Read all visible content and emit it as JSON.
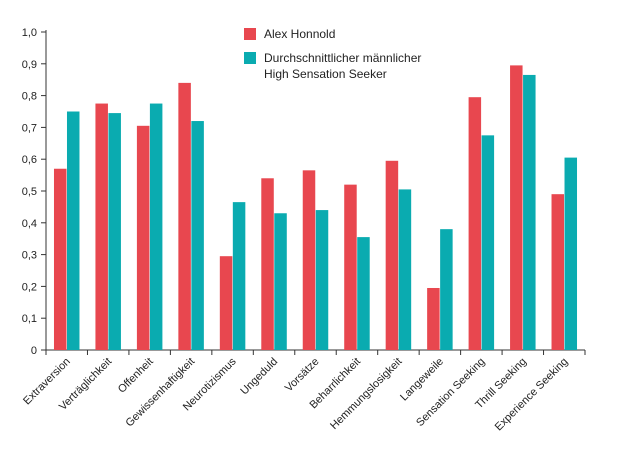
{
  "chart_data": {
    "type": "bar",
    "title": "",
    "xlabel": "",
    "ylabel": "",
    "ylim": [
      0,
      1.0
    ],
    "yticks": [
      "0",
      "0,1",
      "0,2",
      "0,3",
      "0,4",
      "0,5",
      "0,6",
      "0,7",
      "0,8",
      "0,9",
      "1,0"
    ],
    "categories": [
      "Extraversion",
      "Verträglichkeit",
      "Offenheit",
      "Gewissenhaftigkeit",
      "Neurotizismus",
      "Ungeduld",
      "Vorsätze",
      "Beharrlichkeit",
      "Hemmungslosigkeit",
      "Langeweile",
      "Sensation Seeking",
      "Thrill Seeking",
      "Experience Seeking"
    ],
    "series": [
      {
        "name": "Alex Honnold",
        "color": "#e8474f",
        "values": [
          0.57,
          0.775,
          0.705,
          0.84,
          0.295,
          0.54,
          0.565,
          0.52,
          0.595,
          0.195,
          0.795,
          0.895,
          0.49
        ]
      },
      {
        "name": "Durchschnittlicher männlicher High Sensation Seeker",
        "color": "#0aabb0",
        "values": [
          0.75,
          0.745,
          0.775,
          0.72,
          0.465,
          0.43,
          0.44,
          0.355,
          0.505,
          0.38,
          0.675,
          0.865,
          0.605
        ]
      }
    ],
    "legend": {
      "position": "top-center",
      "entries": [
        {
          "lines": [
            "Alex Honnold"
          ]
        },
        {
          "lines": [
            "Durchschnittlicher männlicher",
            "High Sensation Seeker"
          ]
        }
      ]
    },
    "grid": false
  }
}
